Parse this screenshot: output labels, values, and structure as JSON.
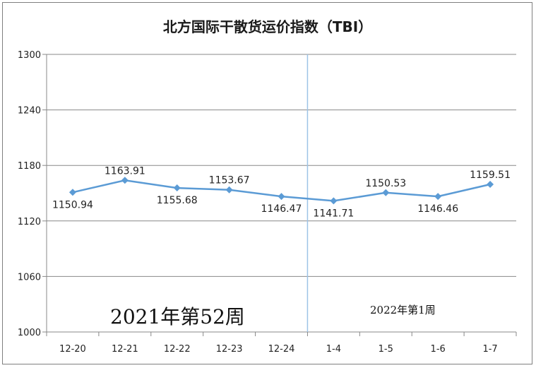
{
  "chart_data": {
    "type": "line",
    "title": "北方国际干散货运价指数（TBI）",
    "xlabel": "",
    "ylabel": "",
    "categories": [
      "12-20",
      "12-21",
      "12-22",
      "12-23",
      "12-24",
      "1-4",
      "1-5",
      "1-6",
      "1-7"
    ],
    "series": [
      {
        "values": [
          1150.94,
          1163.91,
          1155.68,
          1153.67,
          1146.47,
          1141.71,
          1150.53,
          1146.46,
          1159.51
        ],
        "data_labels": [
          "1150.94",
          "1163.91",
          "1155.68",
          "1153.67",
          "1146.47",
          "1141.71",
          "1150.53",
          "1146.46",
          "1159.51"
        ],
        "color": "#5b9bd5"
      }
    ],
    "ylim": [
      1000,
      1300
    ],
    "yticks": [
      "1000",
      "1060",
      "1120",
      "1180",
      "1240",
      "1300"
    ],
    "grid": "horizontal",
    "legend": "none",
    "annotations": {
      "week_left": "2021年第52周",
      "week_right": "2022年第1周"
    },
    "divider_color": "#9dc3e6"
  }
}
